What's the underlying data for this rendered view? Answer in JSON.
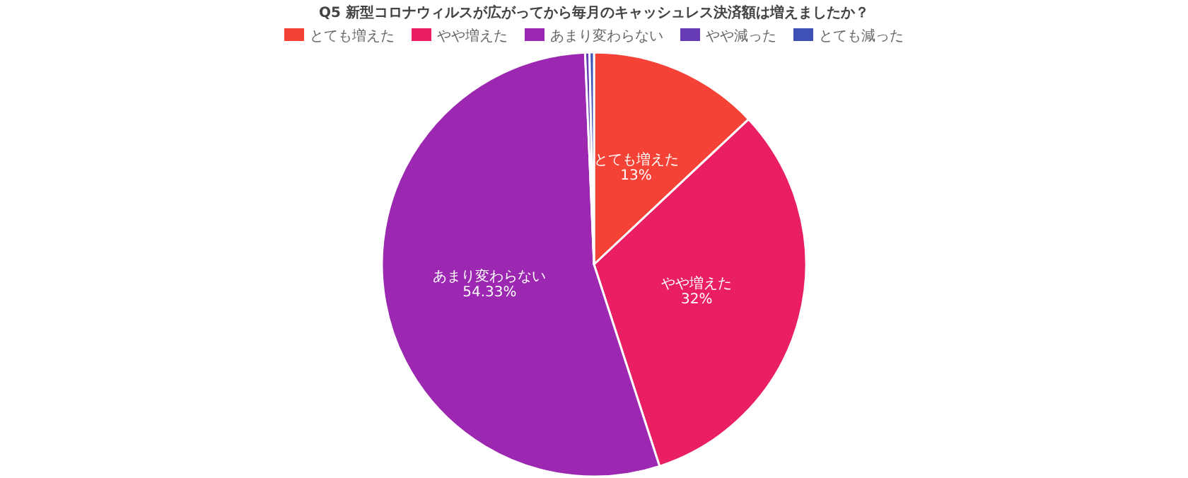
{
  "chart_data": {
    "type": "pie",
    "title": "Q5 新型コロナウィルスが広がってから毎月のキャッシュレス決済額は増えましたか？",
    "categories": [
      "とても増えた",
      "やや増えた",
      "あまり変わらない",
      "やや減った",
      "とても減った"
    ],
    "values": [
      13,
      32,
      54.33,
      0.33,
      0.34
    ],
    "colors": [
      "#f44336",
      "#e91e63",
      "#9c27b0",
      "#673ab7",
      "#3f51b5"
    ],
    "value_labels": [
      "13%",
      "32%",
      "54.33%",
      null,
      null
    ],
    "legend": "top"
  }
}
